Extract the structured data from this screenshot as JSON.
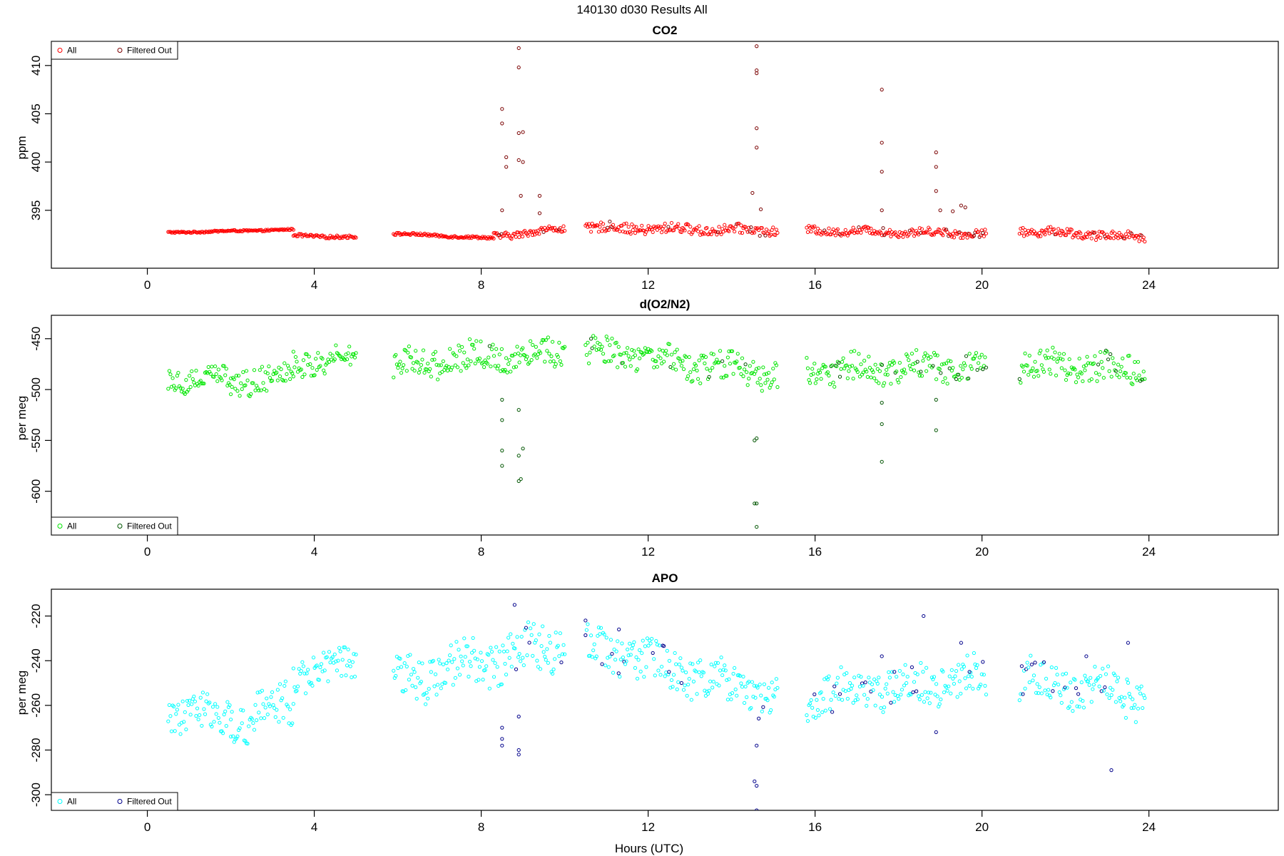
{
  "page_title": "140130   d030   Results All",
  "x_axis_label": "Hours (UTC)",
  "chart_data": [
    {
      "type": "scatter",
      "title": "CO2",
      "xlabel": "",
      "ylabel": "ppm",
      "xlim": [
        -2.3,
        27.1
      ],
      "ylim": [
        389,
        412.5
      ],
      "xticks": [
        0,
        4,
        8,
        12,
        16,
        20,
        24
      ],
      "yticks": [
        395,
        400,
        405,
        410
      ],
      "legend_position": "top-left",
      "legend": [
        "All",
        "Filtered Out"
      ],
      "colors": {
        "all": "#ff0000",
        "filtered": "#7a0000"
      },
      "segments": [
        {
          "x_start": 0.5,
          "x_end": 3.5,
          "y_start": 392.7,
          "y_end": 393.0,
          "noise": 0.08
        },
        {
          "x_start": 3.5,
          "x_end": 5.0,
          "y_start": 392.4,
          "y_end": 392.2,
          "noise": 0.15
        },
        {
          "x_start": 5.9,
          "x_end": 8.3,
          "y_start": 392.6,
          "y_end": 392.1,
          "noise": 0.12
        },
        {
          "x_start": 8.3,
          "x_end": 10.0,
          "y_start": 392.3,
          "y_end": 393.1,
          "noise": 0.35
        },
        {
          "x_start": 10.5,
          "x_end": 15.1,
          "y_start": 393.2,
          "y_end": 392.9,
          "noise": 0.5
        },
        {
          "x_start": 15.8,
          "x_end": 20.1,
          "y_start": 392.9,
          "y_end": 392.6,
          "noise": 0.4
        },
        {
          "x_start": 20.9,
          "x_end": 23.9,
          "y_start": 392.9,
          "y_end": 392.2,
          "noise": 0.45
        }
      ],
      "filtered_points": [
        [
          8.5,
          405.5
        ],
        [
          8.5,
          404.0
        ],
        [
          8.6,
          400.5
        ],
        [
          8.6,
          399.5
        ],
        [
          8.5,
          395.0
        ],
        [
          8.9,
          411.8
        ],
        [
          8.9,
          409.8
        ],
        [
          8.9,
          400.2
        ],
        [
          8.95,
          396.5
        ],
        [
          8.9,
          403.0
        ],
        [
          9.0,
          403.1
        ],
        [
          9.0,
          400.0
        ],
        [
          9.4,
          396.5
        ],
        [
          9.4,
          394.7
        ],
        [
          14.6,
          412.0
        ],
        [
          14.6,
          409.5
        ],
        [
          14.6,
          409.2
        ],
        [
          14.6,
          403.5
        ],
        [
          14.6,
          401.5
        ],
        [
          14.5,
          396.8
        ],
        [
          14.7,
          395.1
        ],
        [
          17.6,
          407.5
        ],
        [
          17.6,
          402.0
        ],
        [
          17.6,
          399.0
        ],
        [
          18.9,
          401.0
        ],
        [
          18.9,
          399.5
        ],
        [
          18.9,
          397.0
        ],
        [
          17.6,
          395.0
        ],
        [
          19.0,
          395.0
        ],
        [
          19.5,
          395.5
        ],
        [
          19.6,
          395.3
        ],
        [
          19.3,
          394.9
        ]
      ]
    },
    {
      "type": "scatter",
      "title": "d(O2/N2)",
      "xlabel": "",
      "ylabel": "per meg",
      "xlim": [
        -2.3,
        27.1
      ],
      "ylim": [
        -643,
        -427
      ],
      "xticks": [
        0,
        4,
        8,
        12,
        16,
        20,
        24
      ],
      "yticks": [
        -450,
        -500,
        -550,
        -600
      ],
      "legend_position": "bottom-left",
      "legend": [
        "All",
        "Filtered Out"
      ],
      "colors": {
        "all": "#00e600",
        "filtered": "#005500"
      },
      "segments": [
        {
          "x_start": 0.5,
          "x_end": 2.0,
          "y_start": -488,
          "y_end": -490,
          "noise": 12
        },
        {
          "x_start": 2.0,
          "x_end": 3.5,
          "y_start": -492,
          "y_end": -485,
          "noise": 14
        },
        {
          "x_start": 3.5,
          "x_end": 5.0,
          "y_start": -475,
          "y_end": -468,
          "noise": 12
        },
        {
          "x_start": 5.9,
          "x_end": 10.0,
          "y_start": -475,
          "y_end": -462,
          "noise": 14
        },
        {
          "x_start": 10.5,
          "x_end": 15.1,
          "y_start": -462,
          "y_end": -485,
          "noise": 14
        },
        {
          "x_start": 15.8,
          "x_end": 20.1,
          "y_start": -482,
          "y_end": -475,
          "noise": 14
        },
        {
          "x_start": 20.9,
          "x_end": 23.9,
          "y_start": -475,
          "y_end": -480,
          "noise": 14
        }
      ],
      "filtered_points": [
        [
          8.5,
          -510
        ],
        [
          8.5,
          -530
        ],
        [
          8.5,
          -560
        ],
        [
          8.5,
          -575
        ],
        [
          8.9,
          -520
        ],
        [
          8.9,
          -565
        ],
        [
          9.0,
          -558
        ],
        [
          8.95,
          -588
        ],
        [
          8.9,
          -590
        ],
        [
          14.55,
          -550
        ],
        [
          14.6,
          -548
        ],
        [
          14.6,
          -612
        ],
        [
          14.55,
          -612
        ],
        [
          14.6,
          -635
        ],
        [
          17.6,
          -513
        ],
        [
          17.6,
          -534
        ],
        [
          17.6,
          -571
        ],
        [
          18.9,
          -540
        ],
        [
          18.9,
          -510
        ]
      ]
    },
    {
      "type": "scatter",
      "title": "APO",
      "xlabel": "Hours (UTC)",
      "ylabel": "per meg",
      "xlim": [
        -2.3,
        27.1
      ],
      "ylim": [
        -307,
        -208
      ],
      "xticks": [
        0,
        4,
        8,
        12,
        16,
        20,
        24
      ],
      "yticks": [
        -220,
        -240,
        -260,
        -280,
        -300
      ],
      "legend_position": "bottom-left",
      "legend": [
        "All",
        "Filtered Out"
      ],
      "colors": {
        "all": "#00ffff",
        "filtered": "#00008b"
      },
      "segments": [
        {
          "x_start": 0.5,
          "x_end": 2.0,
          "y_start": -262,
          "y_end": -265,
          "noise": 8
        },
        {
          "x_start": 2.0,
          "x_end": 3.5,
          "y_start": -268,
          "y_end": -258,
          "noise": 10
        },
        {
          "x_start": 3.5,
          "x_end": 5.0,
          "y_start": -245,
          "y_end": -243,
          "noise": 8
        },
        {
          "x_start": 5.9,
          "x_end": 10.0,
          "y_start": -250,
          "y_end": -232,
          "noise": 10
        },
        {
          "x_start": 10.5,
          "x_end": 15.1,
          "y_start": -232,
          "y_end": -258,
          "noise": 9
        },
        {
          "x_start": 15.8,
          "x_end": 20.1,
          "y_start": -256,
          "y_end": -248,
          "noise": 9
        },
        {
          "x_start": 20.9,
          "x_end": 23.9,
          "y_start": -248,
          "y_end": -256,
          "noise": 9
        }
      ],
      "filtered_points": [
        [
          8.5,
          -270
        ],
        [
          8.5,
          -275
        ],
        [
          8.5,
          -278
        ],
        [
          8.9,
          -280
        ],
        [
          8.9,
          -282
        ],
        [
          8.9,
          -265
        ],
        [
          8.8,
          -215
        ],
        [
          14.55,
          -294
        ],
        [
          14.6,
          -296
        ],
        [
          14.6,
          -307
        ],
        [
          14.6,
          -278
        ],
        [
          18.6,
          -220
        ],
        [
          18.9,
          -272
        ],
        [
          23.1,
          -289
        ],
        [
          23.5,
          -232
        ],
        [
          10.5,
          -222
        ],
        [
          11.3,
          -226
        ],
        [
          12.5,
          -245
        ],
        [
          12.8,
          -250
        ],
        [
          17.6,
          -238
        ],
        [
          17.9,
          -245
        ],
        [
          19.5,
          -232
        ],
        [
          19.7,
          -245
        ],
        [
          22.5,
          -238
        ]
      ]
    }
  ]
}
